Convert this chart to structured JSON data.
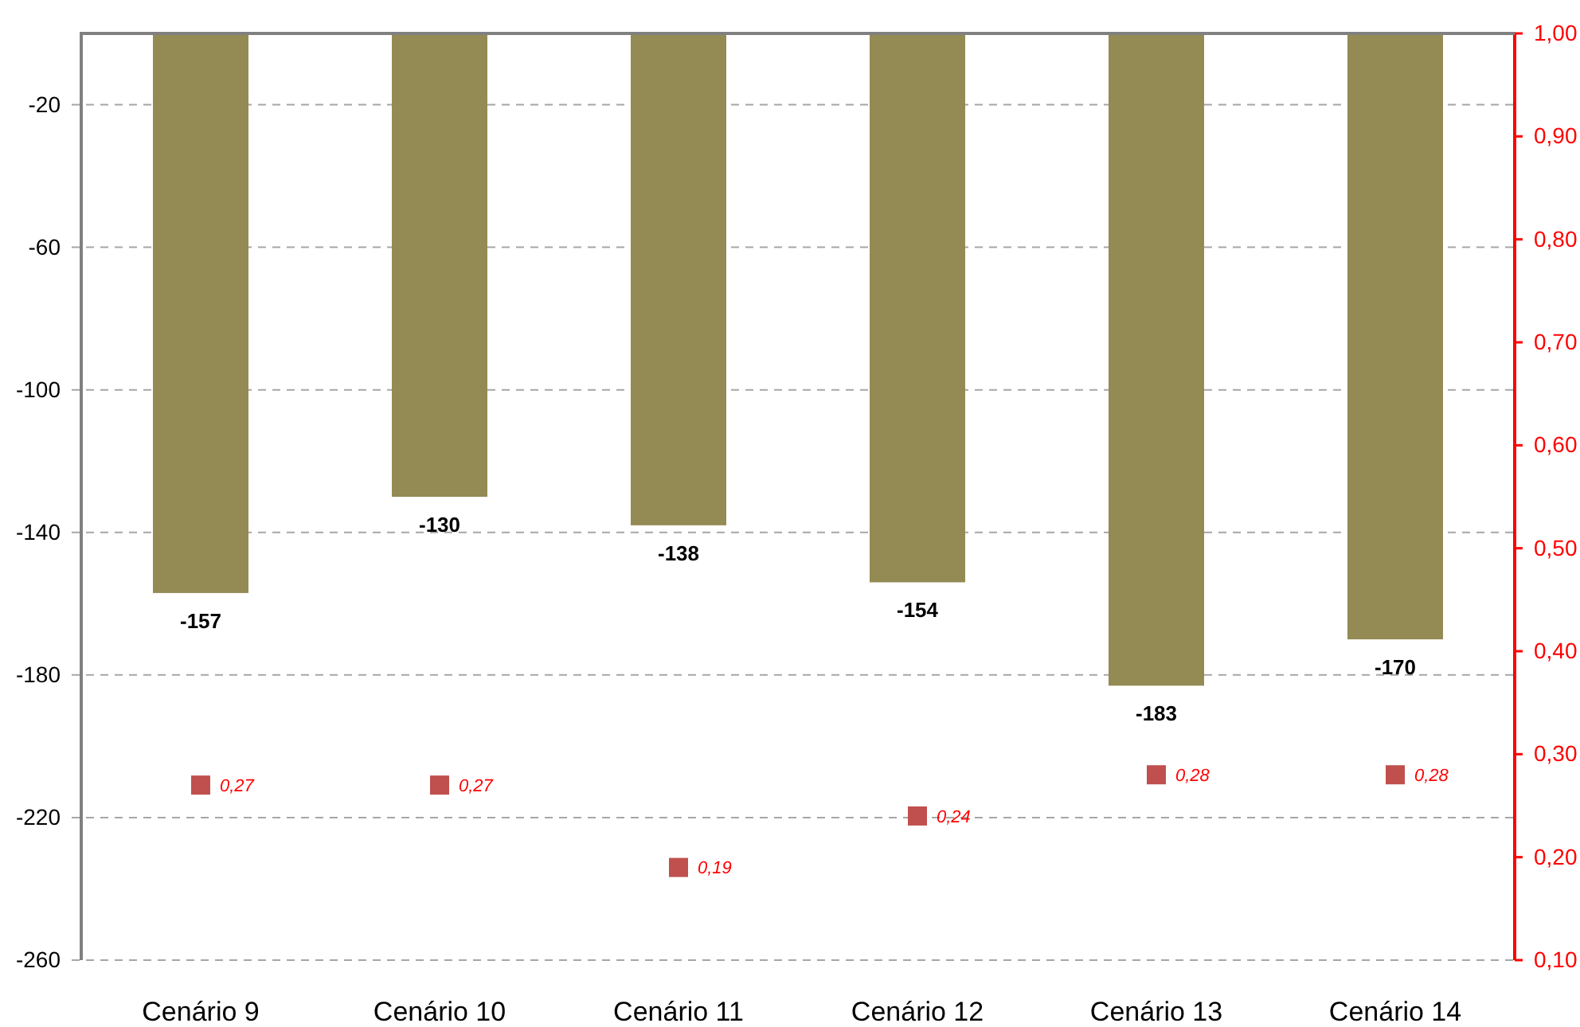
{
  "chart_data": {
    "type": "bar",
    "categories": [
      "Cenário 9",
      "Cenário 10",
      "Cenário 11",
      "Cenário 12",
      "Cenário 13",
      "Cenário 14"
    ],
    "series": [
      {
        "color": "#948a54",
        "values": [
          -157,
          -130,
          -138,
          -154,
          -183,
          -170
        ],
        "value_labels": [
          "-157",
          "-130",
          "-138",
          "-154",
          "-183",
          "-170"
        ]
      },
      {
        "type": "scatter",
        "axis": "y2",
        "color": "#c0504d",
        "values": [
          0.27,
          0.27,
          0.19,
          0.24,
          0.28,
          0.28
        ],
        "value_labels": [
          "0,27",
          "0,27",
          "0,19",
          "0,24",
          "0,28",
          "0,28"
        ]
      }
    ],
    "ylim": [
      -260,
      0
    ],
    "yticks": [
      -20,
      -60,
      -100,
      -140,
      -180,
      -220,
      -260
    ],
    "y2lim": [
      0.1,
      1.0
    ],
    "y2ticks": [
      {
        "value": 0.1,
        "label": "0,10"
      },
      {
        "value": 0.2,
        "label": "0,20"
      },
      {
        "value": 0.3,
        "label": "0,30"
      },
      {
        "value": 0.4,
        "label": "0,40"
      },
      {
        "value": 0.5,
        "label": "0,50"
      },
      {
        "value": 0.6,
        "label": "0,60"
      },
      {
        "value": 0.7,
        "label": "0,70"
      },
      {
        "value": 0.8,
        "label": "0,80"
      },
      {
        "value": 0.9,
        "label": "0,90"
      },
      {
        "value": 1.0,
        "label": "1,00"
      }
    ],
    "grid": "y",
    "marker": "square"
  }
}
